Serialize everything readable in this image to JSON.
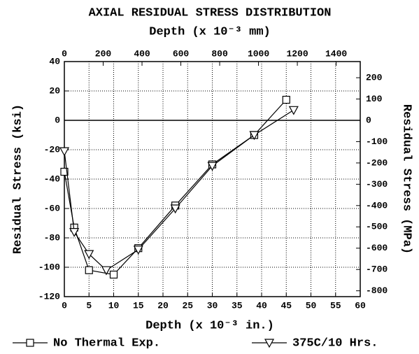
{
  "chart_data": {
    "type": "line",
    "title": "AXIAL RESIDUAL STRESS DISTRIBUTION",
    "xlabel": "Depth (x 10⁻³ in.)",
    "x2label": "Depth (x 10⁻³ mm)",
    "ylabel": "Residual Stress (ksi)",
    "y2label": "Residual Stress (MPa)",
    "xlim": [
      0,
      60
    ],
    "xticks": [
      0,
      5,
      10,
      15,
      20,
      25,
      30,
      35,
      40,
      45,
      50,
      55,
      60
    ],
    "x2lim": [
      0,
      1524
    ],
    "x2ticks": [
      0,
      200,
      400,
      600,
      800,
      1000,
      1200,
      1400
    ],
    "ylim": [
      -120,
      40
    ],
    "yticks": [
      40,
      20,
      0,
      -20,
      -40,
      -60,
      -80,
      -100,
      -120
    ],
    "y2lim": [
      -827.4,
      275.8
    ],
    "y2ticks": [
      200,
      100,
      0,
      -100,
      -200,
      -300,
      -400,
      -500,
      -600,
      -700,
      -800
    ],
    "grid": true,
    "zero_line": true,
    "legend": "bottom",
    "series": [
      {
        "name": "No Thermal Exp.",
        "color": "#000000",
        "marker": "square",
        "x": [
          0,
          2,
          5,
          10,
          15,
          22.5,
          30,
          38.5,
          45
        ],
        "values": [
          -35,
          -73,
          -102,
          -105,
          -87,
          -58,
          -30,
          -10,
          14
        ]
      },
      {
        "name": "375C/10 Hrs.",
        "color": "#000000",
        "marker": "triangle-down",
        "x": [
          0,
          2,
          5,
          8.5,
          15,
          22.5,
          30,
          38.5,
          46.5
        ],
        "values": [
          -21,
          -76,
          -91,
          -102,
          -88,
          -60,
          -31,
          -10,
          7
        ]
      }
    ]
  }
}
